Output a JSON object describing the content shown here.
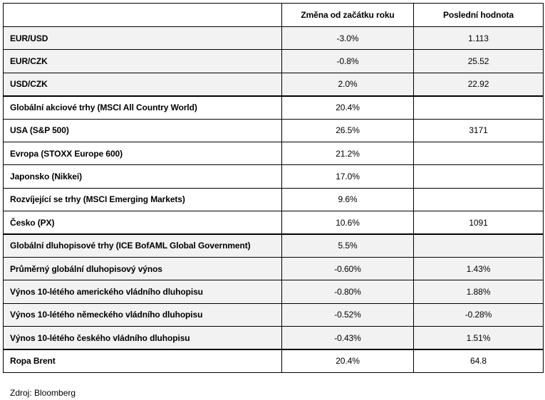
{
  "table": {
    "headers": [
      "",
      "Změna od začátku roku",
      "Poslední hodnota"
    ],
    "rows": [
      {
        "label": "EUR/USD",
        "change": "-3.0%",
        "last": "1.113",
        "shaded": true,
        "group_start": false
      },
      {
        "label": "EUR/CZK",
        "change": "-0.8%",
        "last": "25.52",
        "shaded": true,
        "group_start": false
      },
      {
        "label": "USD/CZK",
        "change": "2.0%",
        "last": "22.92",
        "shaded": true,
        "group_start": false
      },
      {
        "label": "Globální akciové trhy (MSCI All Country World)",
        "change": "20.4%",
        "last": "",
        "shaded": false,
        "group_start": true
      },
      {
        "label": "USA (S&P 500)",
        "change": "26.5%",
        "last": "3171",
        "shaded": false,
        "group_start": false
      },
      {
        "label": "Evropa (STOXX Europe 600)",
        "change": "21.2%",
        "last": "",
        "shaded": false,
        "group_start": false
      },
      {
        "label": "Japonsko (Nikkei)",
        "change": "17.0%",
        "last": "",
        "shaded": false,
        "group_start": false
      },
      {
        "label": "Rozvíjející se trhy (MSCI Emerging Markets)",
        "change": "9.6%",
        "last": "",
        "shaded": false,
        "group_start": false
      },
      {
        "label": "Česko (PX)",
        "change": "10.6%",
        "last": "1091",
        "shaded": false,
        "group_start": false
      },
      {
        "label": "Globální dluhopisové trhy (ICE BofAML Global Government)",
        "change": "5.5%",
        "last": "",
        "shaded": true,
        "group_start": true
      },
      {
        "label": "Průměrný globální dluhopisový výnos",
        "change": "-0.60%",
        "last": "1.43%",
        "shaded": true,
        "group_start": false
      },
      {
        "label": "Výnos 10-létého amerického vládního dluhopisu",
        "change": "-0.80%",
        "last": "1.88%",
        "shaded": true,
        "group_start": false
      },
      {
        "label": "Výnos 10-létého německého vládního dluhopisu",
        "change": "-0.52%",
        "last": "-0.28%",
        "shaded": true,
        "group_start": false
      },
      {
        "label": "Výnos 10-létého českého vládního dluhopisu",
        "change": "-0.43%",
        "last": "1.51%",
        "shaded": true,
        "group_start": false
      },
      {
        "label": "Ropa Brent",
        "change": "20.4%",
        "last": "64.8",
        "shaded": false,
        "group_start": true
      }
    ]
  },
  "source": "Zdroj: Bloomberg",
  "colors": {
    "shaded_row": "#f2f2f2",
    "border": "#000000"
  }
}
